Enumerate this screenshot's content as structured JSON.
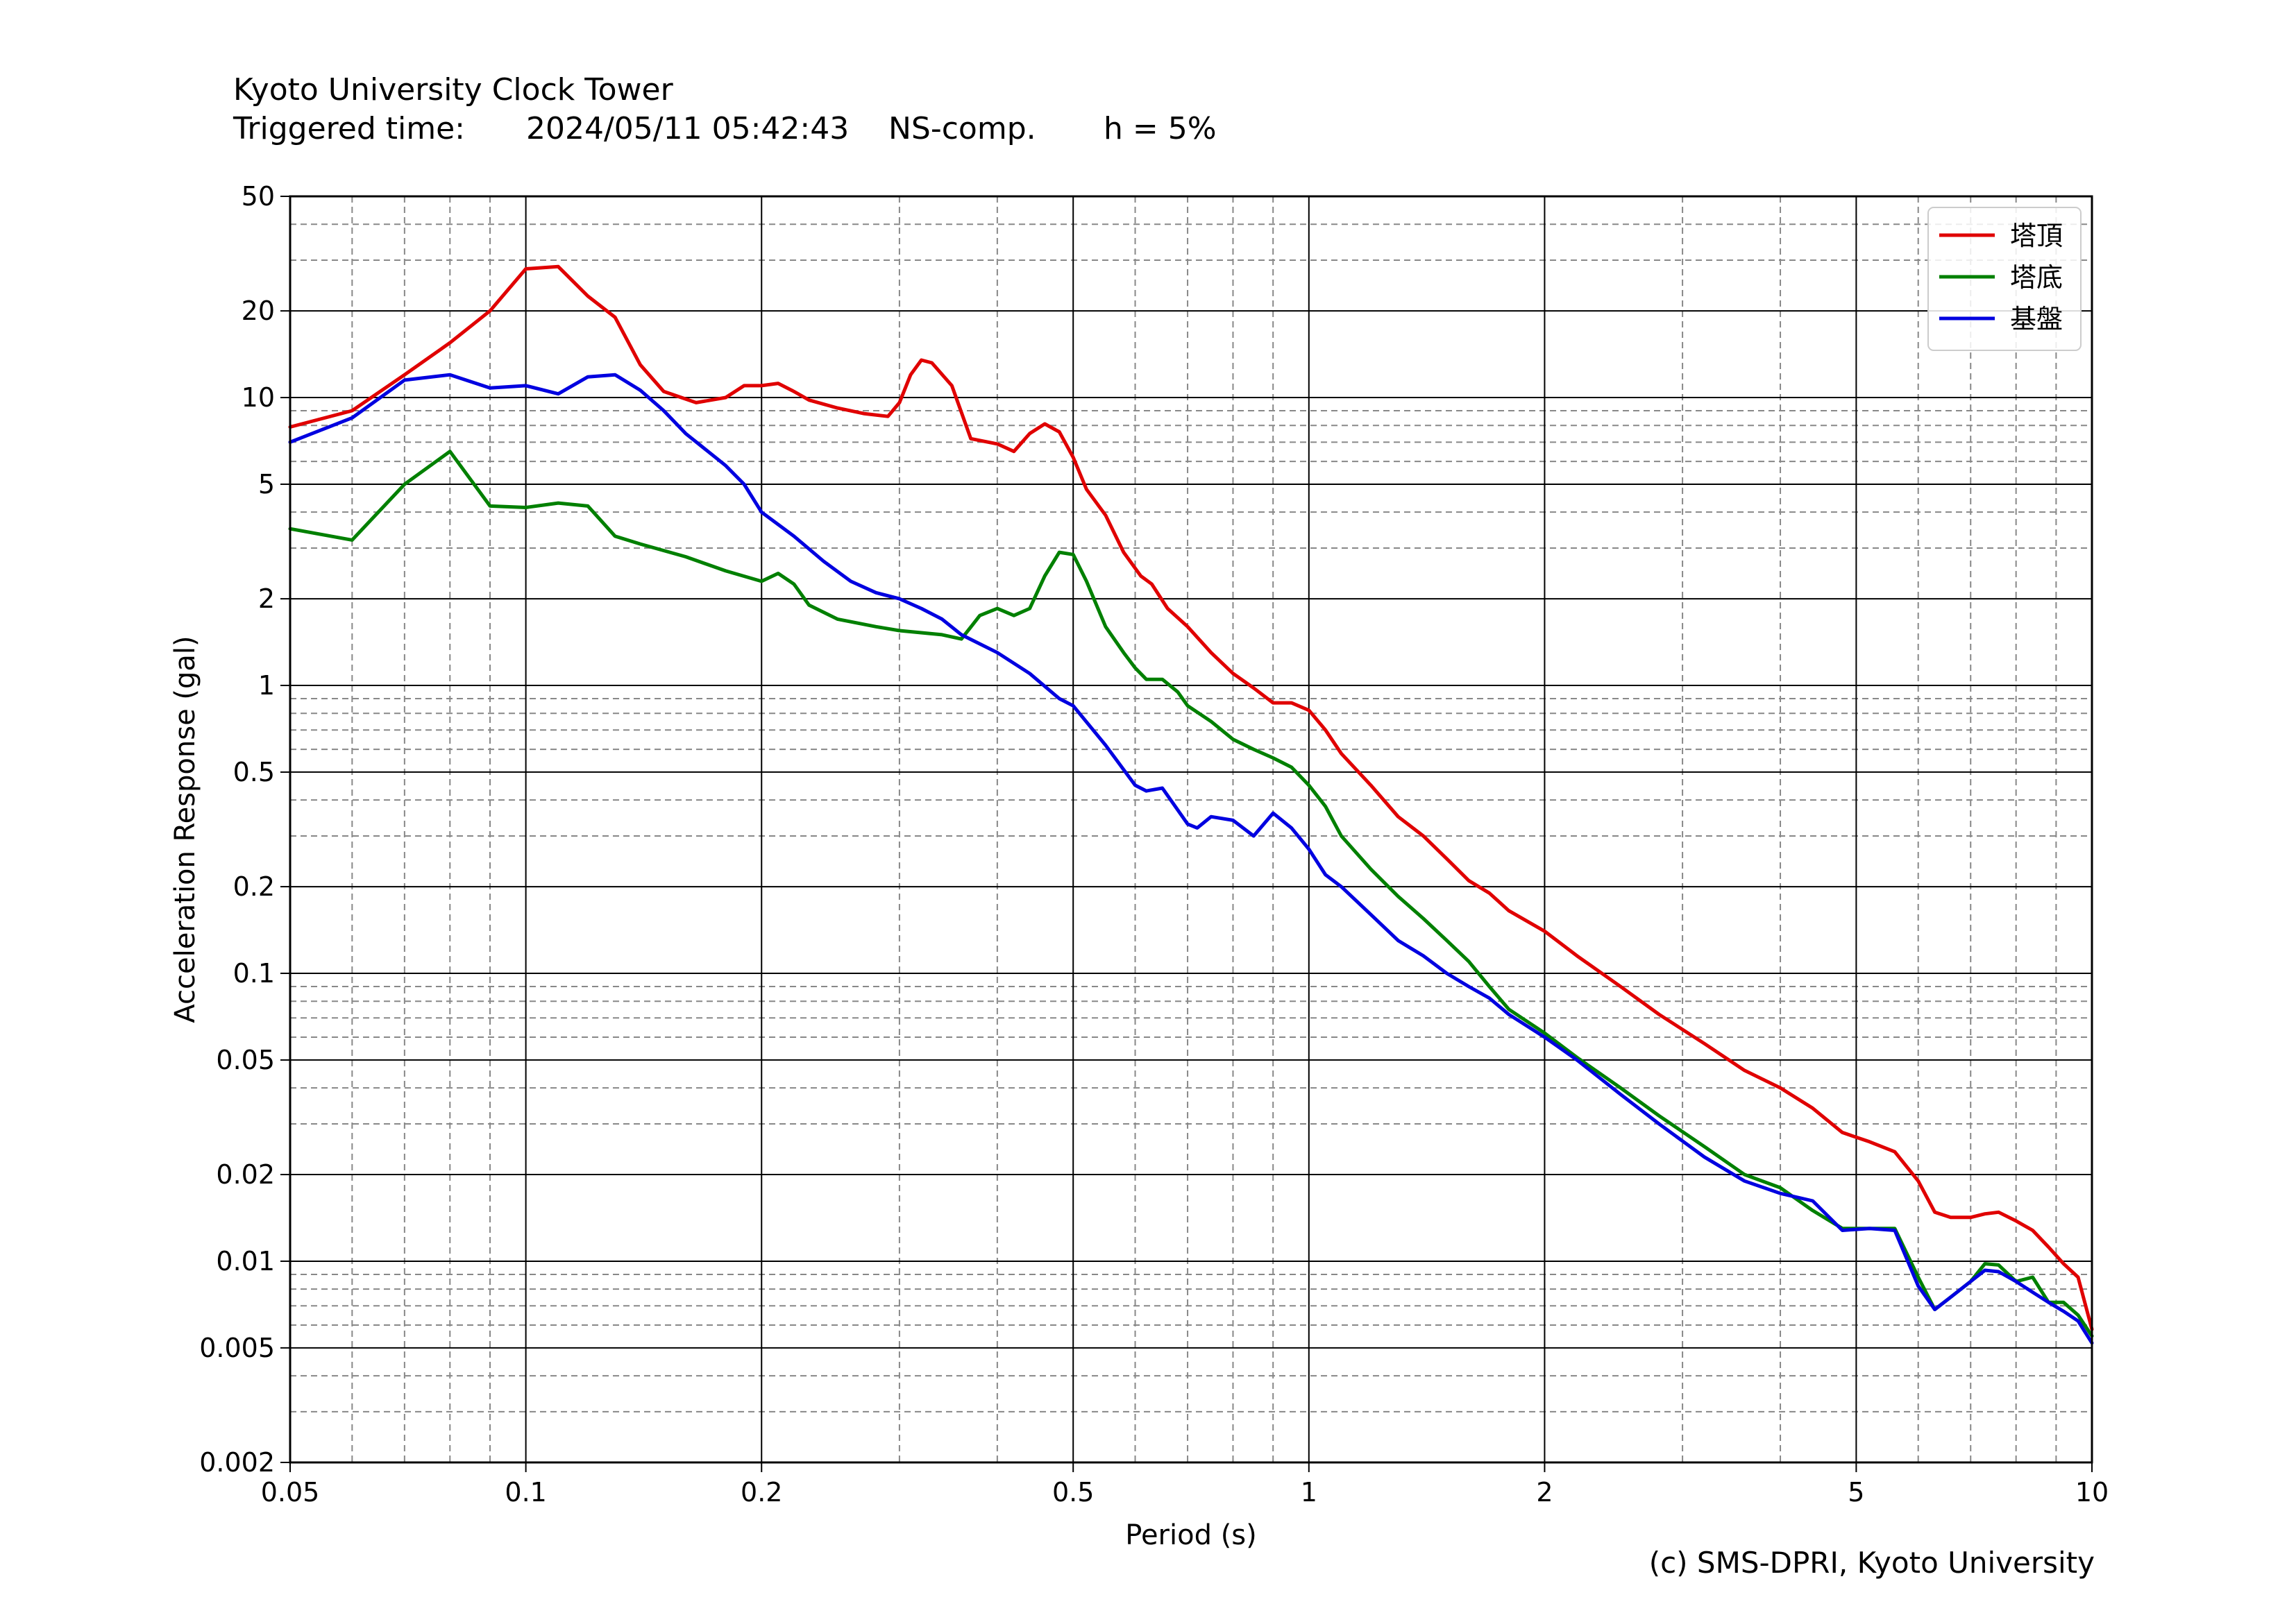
{
  "header": {
    "title": "Kyoto University Clock Tower",
    "triggered_label": "Triggered time:",
    "triggered_value": "2024/05/11 05:42:43",
    "component": "NS-comp.",
    "damping": "h = 5%"
  },
  "footer": {
    "credit": "(c) SMS-DPRI, Kyoto University"
  },
  "chart_data": {
    "type": "line",
    "xscale": "log",
    "yscale": "log",
    "xlabel": "Period (s)",
    "ylabel": "Acceleration Response (gal)",
    "xlim": [
      0.05,
      10
    ],
    "ylim": [
      0.002,
      50
    ],
    "xticks": [
      0.05,
      0.1,
      0.2,
      0.5,
      1,
      2,
      5,
      10
    ],
    "xtick_labels": [
      "0.05",
      "0.1",
      "0.2",
      "0.5",
      "1",
      "2",
      "5",
      "10"
    ],
    "yticks": [
      0.002,
      0.005,
      0.01,
      0.02,
      0.05,
      0.1,
      0.2,
      0.5,
      1,
      2,
      5,
      10,
      20,
      50
    ],
    "ytick_labels": [
      "0.002",
      "0.005",
      "0.01",
      "0.02",
      "0.05",
      "0.1",
      "0.2",
      "0.5",
      "1",
      "2",
      "5",
      "10",
      "20",
      "50"
    ],
    "grid": true,
    "legend_position": "top-right",
    "series": [
      {
        "name": "塔頂",
        "color": "#e00000",
        "points": [
          [
            0.05,
            7.9
          ],
          [
            0.06,
            9
          ],
          [
            0.07,
            12
          ],
          [
            0.08,
            15.5
          ],
          [
            0.09,
            20
          ],
          [
            0.1,
            28
          ],
          [
            0.11,
            28.5
          ],
          [
            0.12,
            22.5
          ],
          [
            0.13,
            19
          ],
          [
            0.14,
            13
          ],
          [
            0.15,
            10.5
          ],
          [
            0.165,
            9.6
          ],
          [
            0.18,
            10
          ],
          [
            0.19,
            11
          ],
          [
            0.2,
            11
          ],
          [
            0.21,
            11.2
          ],
          [
            0.22,
            10.5
          ],
          [
            0.23,
            9.8
          ],
          [
            0.25,
            9.2
          ],
          [
            0.27,
            8.8
          ],
          [
            0.29,
            8.6
          ],
          [
            0.3,
            9.6
          ],
          [
            0.31,
            12
          ],
          [
            0.32,
            13.5
          ],
          [
            0.33,
            13.2
          ],
          [
            0.35,
            11
          ],
          [
            0.37,
            7.2
          ],
          [
            0.4,
            6.9
          ],
          [
            0.42,
            6.5
          ],
          [
            0.44,
            7.5
          ],
          [
            0.46,
            8.1
          ],
          [
            0.48,
            7.6
          ],
          [
            0.5,
            6.2
          ],
          [
            0.52,
            4.8
          ],
          [
            0.55,
            3.9
          ],
          [
            0.58,
            2.9
          ],
          [
            0.61,
            2.4
          ],
          [
            0.63,
            2.25
          ],
          [
            0.66,
            1.85
          ],
          [
            0.7,
            1.6
          ],
          [
            0.75,
            1.3
          ],
          [
            0.8,
            1.1
          ],
          [
            0.85,
            0.98
          ],
          [
            0.9,
            0.87
          ],
          [
            0.95,
            0.87
          ],
          [
            1.0,
            0.82
          ],
          [
            1.05,
            0.7
          ],
          [
            1.1,
            0.58
          ],
          [
            1.2,
            0.45
          ],
          [
            1.3,
            0.35
          ],
          [
            1.4,
            0.3
          ],
          [
            1.5,
            0.25
          ],
          [
            1.6,
            0.21
          ],
          [
            1.7,
            0.19
          ],
          [
            1.8,
            0.165
          ],
          [
            2.0,
            0.14
          ],
          [
            2.2,
            0.115
          ],
          [
            2.5,
            0.09
          ],
          [
            2.8,
            0.072
          ],
          [
            3.2,
            0.057
          ],
          [
            3.6,
            0.046
          ],
          [
            4.0,
            0.04
          ],
          [
            4.4,
            0.034
          ],
          [
            4.8,
            0.028
          ],
          [
            5.2,
            0.026
          ],
          [
            5.6,
            0.024
          ],
          [
            6.0,
            0.019
          ],
          [
            6.3,
            0.0148
          ],
          [
            6.6,
            0.0142
          ],
          [
            7.0,
            0.0142
          ],
          [
            7.3,
            0.0146
          ],
          [
            7.6,
            0.0148
          ],
          [
            8.0,
            0.0138
          ],
          [
            8.4,
            0.0128
          ],
          [
            8.8,
            0.0112
          ],
          [
            9.2,
            0.0098
          ],
          [
            9.6,
            0.0088
          ],
          [
            10.0,
            0.0058
          ]
        ]
      },
      {
        "name": "塔底",
        "color": "#008000",
        "points": [
          [
            0.05,
            3.5
          ],
          [
            0.06,
            3.2
          ],
          [
            0.07,
            5
          ],
          [
            0.08,
            6.5
          ],
          [
            0.09,
            4.2
          ],
          [
            0.1,
            4.15
          ],
          [
            0.11,
            4.3
          ],
          [
            0.12,
            4.2
          ],
          [
            0.13,
            3.3
          ],
          [
            0.14,
            3.1
          ],
          [
            0.16,
            2.8
          ],
          [
            0.18,
            2.5
          ],
          [
            0.2,
            2.3
          ],
          [
            0.21,
            2.45
          ],
          [
            0.22,
            2.25
          ],
          [
            0.23,
            1.9
          ],
          [
            0.25,
            1.7
          ],
          [
            0.28,
            1.6
          ],
          [
            0.3,
            1.55
          ],
          [
            0.34,
            1.5
          ],
          [
            0.36,
            1.45
          ],
          [
            0.38,
            1.75
          ],
          [
            0.4,
            1.85
          ],
          [
            0.42,
            1.75
          ],
          [
            0.44,
            1.85
          ],
          [
            0.46,
            2.4
          ],
          [
            0.48,
            2.9
          ],
          [
            0.5,
            2.85
          ],
          [
            0.52,
            2.3
          ],
          [
            0.55,
            1.6
          ],
          [
            0.58,
            1.3
          ],
          [
            0.6,
            1.15
          ],
          [
            0.62,
            1.05
          ],
          [
            0.65,
            1.05
          ],
          [
            0.68,
            0.95
          ],
          [
            0.7,
            0.85
          ],
          [
            0.75,
            0.75
          ],
          [
            0.8,
            0.65
          ],
          [
            0.85,
            0.6
          ],
          [
            0.9,
            0.56
          ],
          [
            0.95,
            0.52
          ],
          [
            1.0,
            0.45
          ],
          [
            1.05,
            0.38
          ],
          [
            1.1,
            0.3
          ],
          [
            1.2,
            0.23
          ],
          [
            1.3,
            0.185
          ],
          [
            1.4,
            0.155
          ],
          [
            1.5,
            0.13
          ],
          [
            1.6,
            0.11
          ],
          [
            1.7,
            0.09
          ],
          [
            1.8,
            0.075
          ],
          [
            2.0,
            0.062
          ],
          [
            2.2,
            0.051
          ],
          [
            2.5,
            0.04
          ],
          [
            2.8,
            0.032
          ],
          [
            3.2,
            0.025
          ],
          [
            3.6,
            0.02
          ],
          [
            4.0,
            0.018
          ],
          [
            4.4,
            0.015
          ],
          [
            4.8,
            0.013
          ],
          [
            5.2,
            0.013
          ],
          [
            5.6,
            0.013
          ],
          [
            6.0,
            0.0088
          ],
          [
            6.3,
            0.0068
          ],
          [
            6.6,
            0.0075
          ],
          [
            7.0,
            0.0085
          ],
          [
            7.3,
            0.0098
          ],
          [
            7.6,
            0.0097
          ],
          [
            8.0,
            0.0085
          ],
          [
            8.4,
            0.0088
          ],
          [
            8.8,
            0.0072
          ],
          [
            9.2,
            0.0072
          ],
          [
            9.6,
            0.0065
          ],
          [
            10.0,
            0.0055
          ]
        ]
      },
      {
        "name": "基盤",
        "color": "#0000e0",
        "points": [
          [
            0.05,
            7
          ],
          [
            0.06,
            8.5
          ],
          [
            0.07,
            11.5
          ],
          [
            0.08,
            12
          ],
          [
            0.09,
            10.8
          ],
          [
            0.1,
            11
          ],
          [
            0.11,
            10.3
          ],
          [
            0.12,
            11.8
          ],
          [
            0.13,
            12
          ],
          [
            0.14,
            10.6
          ],
          [
            0.15,
            9
          ],
          [
            0.16,
            7.5
          ],
          [
            0.18,
            5.8
          ],
          [
            0.19,
            5
          ],
          [
            0.2,
            4
          ],
          [
            0.22,
            3.3
          ],
          [
            0.24,
            2.7
          ],
          [
            0.26,
            2.3
          ],
          [
            0.28,
            2.1
          ],
          [
            0.3,
            2.0
          ],
          [
            0.32,
            1.85
          ],
          [
            0.34,
            1.7
          ],
          [
            0.36,
            1.5
          ],
          [
            0.4,
            1.3
          ],
          [
            0.44,
            1.1
          ],
          [
            0.48,
            0.9
          ],
          [
            0.5,
            0.85
          ],
          [
            0.55,
            0.62
          ],
          [
            0.6,
            0.45
          ],
          [
            0.62,
            0.43
          ],
          [
            0.65,
            0.44
          ],
          [
            0.7,
            0.33
          ],
          [
            0.72,
            0.32
          ],
          [
            0.75,
            0.35
          ],
          [
            0.8,
            0.34
          ],
          [
            0.85,
            0.3
          ],
          [
            0.9,
            0.36
          ],
          [
            0.95,
            0.32
          ],
          [
            1.0,
            0.27
          ],
          [
            1.05,
            0.22
          ],
          [
            1.1,
            0.2
          ],
          [
            1.2,
            0.16
          ],
          [
            1.3,
            0.13
          ],
          [
            1.4,
            0.115
          ],
          [
            1.5,
            0.1
          ],
          [
            1.6,
            0.09
          ],
          [
            1.7,
            0.082
          ],
          [
            1.8,
            0.072
          ],
          [
            2.0,
            0.06
          ],
          [
            2.2,
            0.05
          ],
          [
            2.5,
            0.038
          ],
          [
            2.8,
            0.03
          ],
          [
            3.2,
            0.023
          ],
          [
            3.6,
            0.019
          ],
          [
            4.0,
            0.0172
          ],
          [
            4.4,
            0.0162
          ],
          [
            4.8,
            0.0128
          ],
          [
            5.2,
            0.013
          ],
          [
            5.6,
            0.0128
          ],
          [
            6.0,
            0.0082
          ],
          [
            6.3,
            0.0068
          ],
          [
            6.6,
            0.0075
          ],
          [
            7.0,
            0.0085
          ],
          [
            7.3,
            0.0093
          ],
          [
            7.6,
            0.0092
          ],
          [
            8.0,
            0.0085
          ],
          [
            8.4,
            0.0078
          ],
          [
            8.8,
            0.0072
          ],
          [
            9.2,
            0.0067
          ],
          [
            9.6,
            0.0062
          ],
          [
            10.0,
            0.0052
          ]
        ]
      }
    ]
  }
}
